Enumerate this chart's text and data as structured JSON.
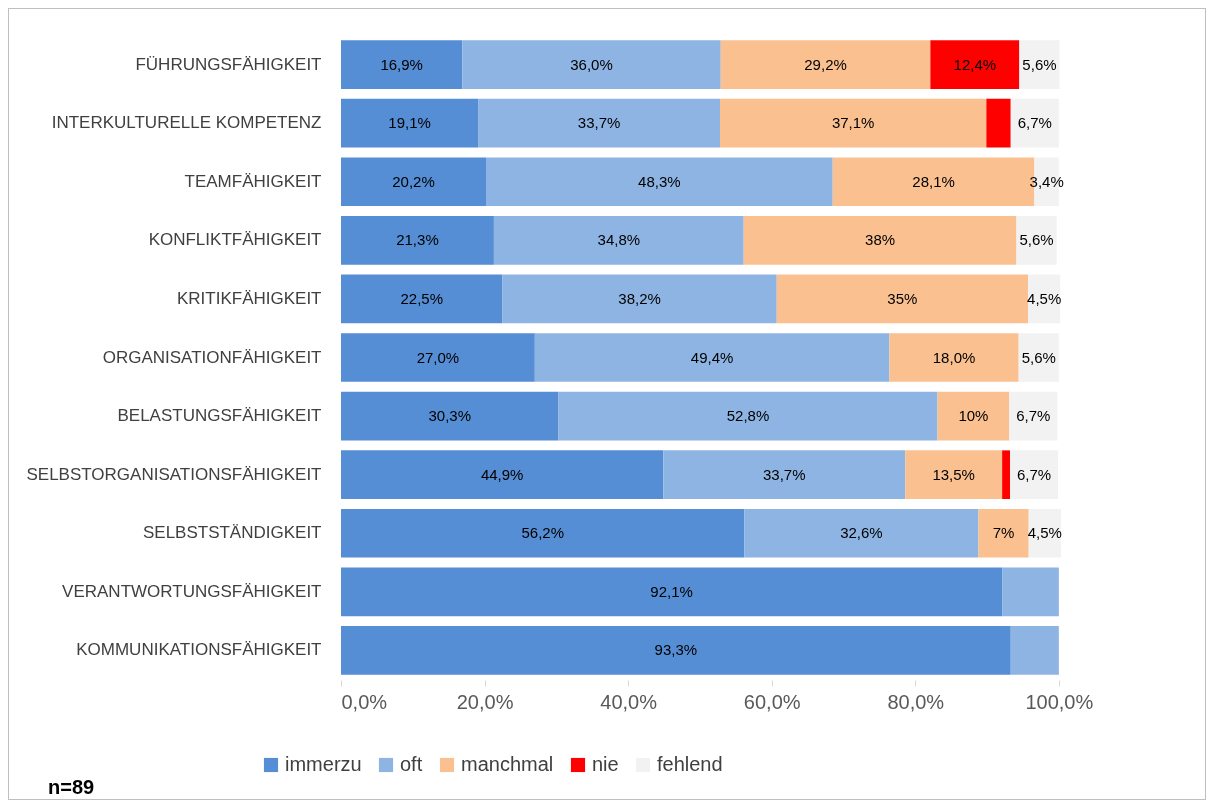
{
  "chart_data": {
    "type": "bar",
    "orientation": "horizontal",
    "stacked": true,
    "legend": "bottom",
    "grid": false,
    "categories": [
      "FÜHRUNGSFÄHIGKEIT",
      "INTERKULTURELLE KOMPETENZ",
      "TEAMFÄHIGKEIT",
      "KONFLIKTFÄHIGKEIT",
      "KRITIKFÄHIGKEIT",
      "ORGANISATIONFÄHIGKEIT",
      "BELASTUNGSFÄHIGKEIT",
      "SELBSTORGANISATIONSFÄHIGKEIT",
      "SELBSTSTÄNDIGKEIT",
      "VERANTWORTUNGSFÄHIGKEIT",
      "KOMMUNIKATIONSFÄHIGKEIT"
    ],
    "series": [
      {
        "name": "immerzu",
        "color": "#558ed5",
        "values": [
          16.9,
          19.1,
          20.2,
          21.3,
          22.5,
          27.0,
          30.3,
          44.9,
          56.2,
          92.1,
          93.3
        ],
        "value_labels": [
          "16,9%",
          "19,1%",
          "20,2%",
          "21,3%",
          "22,5%",
          "27,0%",
          "30,3%",
          "44,9%",
          "56,2%",
          "92,1%",
          "93,3%"
        ]
      },
      {
        "name": "oft",
        "color": "#8eb4e3",
        "values": [
          36.0,
          33.7,
          48.3,
          34.8,
          38.2,
          49.4,
          52.8,
          33.7,
          32.6,
          7.9,
          6.7
        ],
        "value_labels": [
          "36,0%",
          "33,7%",
          "48,3%",
          "34,8%",
          "38,2%",
          "49,4%",
          "52,8%",
          "33,7%",
          "32,6%",
          null,
          null
        ]
      },
      {
        "name": "manchmal",
        "color": "#fac090",
        "values": [
          29.2,
          37.1,
          28.1,
          38,
          35,
          18.0,
          10,
          13.5,
          7,
          null,
          null
        ],
        "value_labels": [
          "29,2%",
          "37,1%",
          "28,1%",
          "38%",
          "35%",
          "18,0%",
          "10%",
          "13,5%",
          "7%",
          null,
          null
        ]
      },
      {
        "name": "nie",
        "color": "#ff0000",
        "values": [
          12.4,
          3.4,
          null,
          null,
          null,
          null,
          null,
          1.1,
          null,
          null,
          null
        ],
        "value_labels": [
          "12,4%",
          null,
          null,
          null,
          null,
          null,
          null,
          null,
          null,
          null,
          null
        ]
      },
      {
        "name": "fehlend",
        "color": "#f2f2f2",
        "values": [
          5.6,
          6.7,
          3.4,
          5.6,
          4.5,
          5.6,
          6.7,
          6.7,
          4.5,
          null,
          null
        ],
        "value_labels": [
          "5,6%",
          "6,7%",
          "3,4%",
          "5,6%",
          "4,5%",
          "5,6%",
          "6,7%",
          "6,7%",
          "4,5%",
          null,
          null
        ]
      }
    ],
    "xlim": [
      0,
      100.3
    ],
    "xticks": [
      {
        "value": 0,
        "label": "0,0%"
      },
      {
        "value": 20,
        "label": "20,0%"
      },
      {
        "value": 40,
        "label": "40,0%"
      },
      {
        "value": 60,
        "label": "60,0%"
      },
      {
        "value": 80,
        "label": "80,0%"
      },
      {
        "value": 100,
        "label": "100,0%"
      }
    ],
    "annotations": [
      "n=89"
    ]
  }
}
